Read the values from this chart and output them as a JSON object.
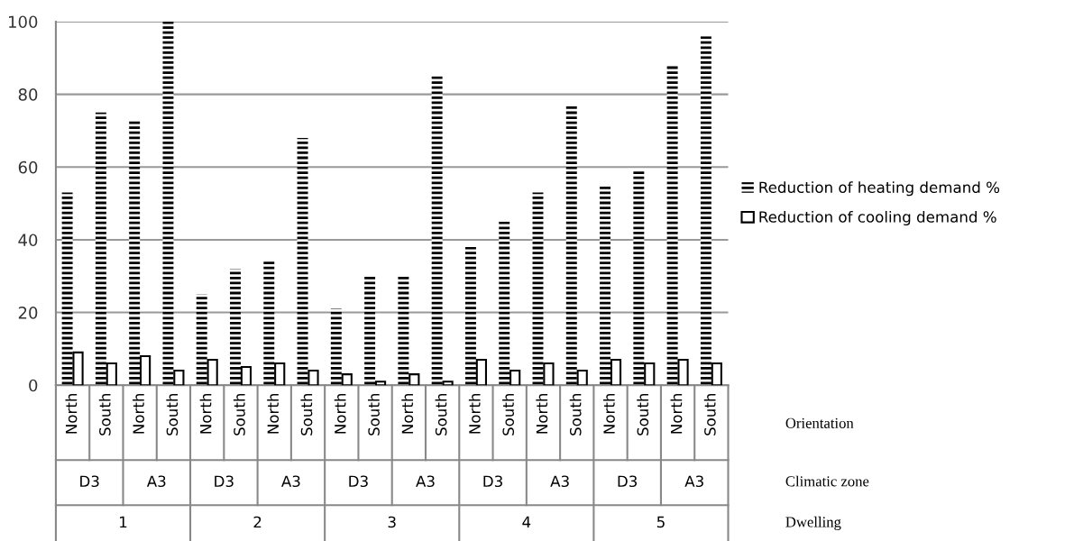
{
  "chart_data": {
    "type": "bar",
    "categories": [
      "North",
      "South",
      "North",
      "South",
      "North",
      "South",
      "North",
      "South",
      "North",
      "South",
      "North",
      "South",
      "North",
      "South",
      "North",
      "South",
      "North",
      "South",
      "North",
      "South"
    ],
    "series": [
      {
        "name": "Reduction of heating demand %",
        "color": "#000000",
        "values": [
          53,
          75,
          73,
          100,
          25,
          32,
          34,
          68,
          21,
          30,
          30,
          85,
          38,
          45,
          53,
          77,
          55,
          59,
          88,
          96
        ]
      },
      {
        "name": "Reduction of cooling demand %",
        "color": "#ffffff",
        "values": [
          9,
          6,
          8,
          4,
          7,
          5,
          6,
          4,
          3,
          1,
          3,
          1,
          7,
          4,
          6,
          4,
          7,
          6,
          7,
          6
        ]
      }
    ],
    "ylim": [
      0,
      100
    ],
    "yticks": [
      0,
      20,
      40,
      60,
      80,
      100
    ],
    "grid": "y",
    "legend": "right",
    "annotations": [
      "D3",
      "A3",
      "D3",
      "A3",
      "D3",
      "A3",
      "D3",
      "A3",
      "D3",
      "A3",
      "1",
      "2",
      "3",
      "4",
      "5",
      "Orientation",
      "Climatic zone",
      "Dwelling"
    ]
  }
}
